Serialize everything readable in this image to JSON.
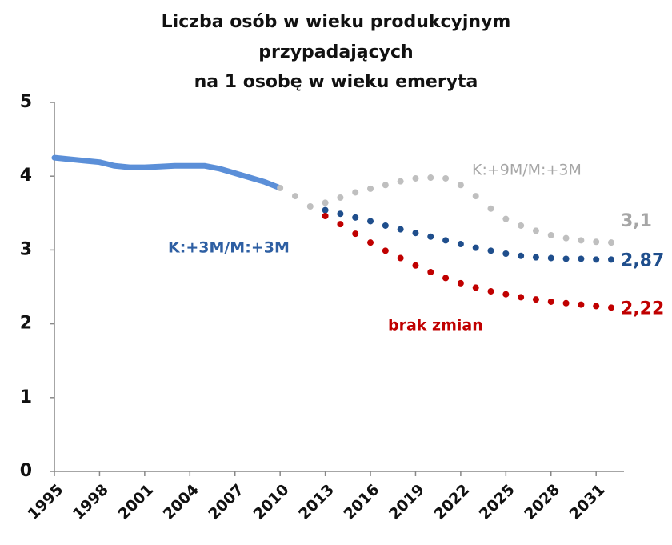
{
  "chart_data": {
    "type": "line",
    "title": [
      "Liczba osób w wieku produkcyjnym",
      "przypadających",
      "na 1 osobę w wieku emeryta"
    ],
    "x": [
      1995,
      1996,
      1997,
      1998,
      1999,
      2000,
      2001,
      2002,
      2003,
      2004,
      2005,
      2006,
      2007,
      2008,
      2009,
      2010,
      2011,
      2012,
      2013,
      2014,
      2015,
      2016,
      2017,
      2018,
      2019,
      2020,
      2021,
      2022,
      2023,
      2024,
      2025,
      2026,
      2027,
      2028,
      2029,
      2030,
      2031,
      2032
    ],
    "xlim": [
      1995,
      2032
    ],
    "xticks": [
      1995,
      1998,
      2001,
      2004,
      2007,
      2010,
      2013,
      2016,
      2019,
      2022,
      2025,
      2028,
      2031
    ],
    "ylim": [
      0,
      5
    ],
    "yticks": [
      0,
      1,
      2,
      3,
      4,
      5
    ],
    "series": [
      {
        "color": "#5b8fd8",
        "style": "solid",
        "values": [
          4.25,
          4.23,
          4.21,
          4.19,
          4.14,
          4.12,
          4.12,
          4.13,
          4.14,
          4.14,
          4.14,
          4.1,
          4.04,
          3.98,
          3.92,
          3.84,
          null,
          null,
          null,
          null,
          null,
          null,
          null,
          null,
          null,
          null,
          null,
          null,
          null,
          null,
          null,
          null,
          null,
          null,
          null,
          null,
          null,
          null
        ]
      },
      {
        "name": "K:+9M/M:+3M",
        "color": "#bfbfbf",
        "style": "dotted",
        "values": [
          null,
          null,
          null,
          null,
          null,
          null,
          null,
          null,
          null,
          null,
          null,
          null,
          null,
          null,
          null,
          3.84,
          3.73,
          3.59,
          3.64,
          3.71,
          3.78,
          3.83,
          3.88,
          3.93,
          3.97,
          3.98,
          3.97,
          3.88,
          3.73,
          3.56,
          3.42,
          3.33,
          3.26,
          3.2,
          3.16,
          3.13,
          3.11,
          3.1
        ],
        "value_labels": [
          null,
          null,
          null,
          null,
          null,
          null,
          null,
          null,
          null,
          null,
          null,
          null,
          null,
          null,
          null,
          null,
          null,
          null,
          null,
          null,
          null,
          null,
          null,
          null,
          null,
          null,
          null,
          null,
          null,
          null,
          null,
          null,
          null,
          null,
          null,
          null,
          null,
          "3,1"
        ]
      },
      {
        "name": "K:+3M/M:+3M",
        "color": "#1f4e8c",
        "style": "dotted",
        "values": [
          null,
          null,
          null,
          null,
          null,
          null,
          null,
          null,
          null,
          null,
          null,
          null,
          null,
          null,
          null,
          null,
          null,
          null,
          3.54,
          3.49,
          3.44,
          3.39,
          3.33,
          3.28,
          3.23,
          3.18,
          3.13,
          3.08,
          3.03,
          2.99,
          2.95,
          2.92,
          2.9,
          2.89,
          2.88,
          2.88,
          2.87,
          2.87
        ],
        "value_labels": [
          null,
          null,
          null,
          null,
          null,
          null,
          null,
          null,
          null,
          null,
          null,
          null,
          null,
          null,
          null,
          null,
          null,
          null,
          null,
          null,
          null,
          null,
          null,
          null,
          null,
          null,
          null,
          null,
          null,
          null,
          null,
          null,
          null,
          null,
          null,
          null,
          null,
          "2,87"
        ]
      },
      {
        "name": "brak zmian",
        "color": "#c00000",
        "style": "dotted",
        "values": [
          null,
          null,
          null,
          null,
          null,
          null,
          null,
          null,
          null,
          null,
          null,
          null,
          null,
          null,
          null,
          null,
          null,
          null,
          3.46,
          3.35,
          3.22,
          3.1,
          2.99,
          2.89,
          2.79,
          2.7,
          2.62,
          2.55,
          2.49,
          2.44,
          2.4,
          2.36,
          2.33,
          2.3,
          2.28,
          2.26,
          2.24,
          2.22
        ],
        "value_labels": [
          null,
          null,
          null,
          null,
          null,
          null,
          null,
          null,
          null,
          null,
          null,
          null,
          null,
          null,
          null,
          null,
          null,
          null,
          null,
          null,
          null,
          null,
          null,
          null,
          null,
          null,
          null,
          null,
          null,
          null,
          null,
          null,
          null,
          null,
          null,
          null,
          null,
          "2,22"
        ]
      }
    ]
  }
}
